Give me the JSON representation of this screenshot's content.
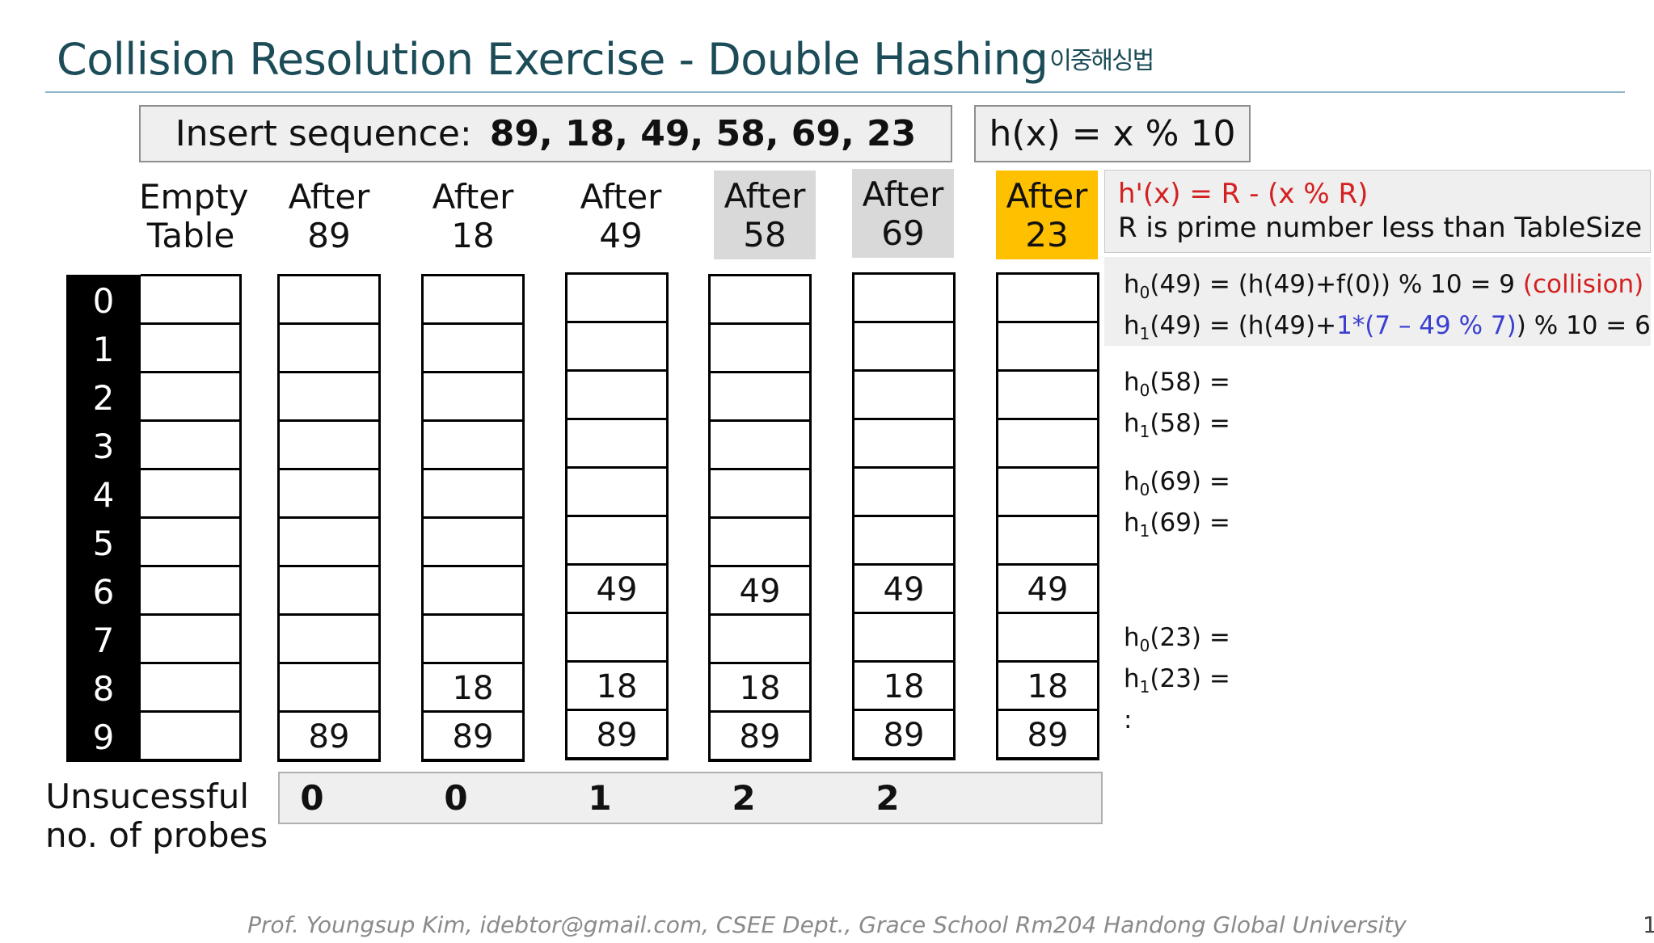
{
  "title": {
    "main": "Collision Resolution Exercise - Double Hashing",
    "korean": "이중해싱법"
  },
  "sequence": {
    "label": "Insert sequence:",
    "values": "89, 18, 49, 58, 69, 23"
  },
  "hash_fn": "h(x) = x % 10",
  "rehash": {
    "formula": "h'(x) = R - (x % R)",
    "note": "R is prime number less than TableSize"
  },
  "columns": [
    {
      "line1": "Empty",
      "line2": "Table",
      "highlight": "none",
      "cells": [
        "",
        "",
        "",
        "",
        "",
        "",
        "",
        "",
        "",
        ""
      ]
    },
    {
      "line1": "After",
      "line2": "89",
      "highlight": "none",
      "cells": [
        "",
        "",
        "",
        "",
        "",
        "",
        "",
        "",
        "",
        "89"
      ]
    },
    {
      "line1": "After",
      "line2": "18",
      "highlight": "none",
      "cells": [
        "",
        "",
        "",
        "",
        "",
        "",
        "",
        "",
        "18",
        "89"
      ]
    },
    {
      "line1": "After",
      "line2": "49",
      "highlight": "none",
      "cells": [
        "",
        "",
        "",
        "",
        "",
        "",
        "49",
        "",
        "18",
        "89"
      ]
    },
    {
      "line1": "After",
      "line2": "58",
      "highlight": "gray",
      "cells": [
        "",
        "",
        "",
        "",
        "",
        "",
        "49",
        "",
        "18",
        "89"
      ]
    },
    {
      "line1": "After",
      "line2": "69",
      "highlight": "gray",
      "cells": [
        "",
        "",
        "",
        "",
        "",
        "",
        "49",
        "",
        "18",
        "89"
      ]
    },
    {
      "line1": "After",
      "line2": "23",
      "highlight": "gold",
      "cells": [
        "",
        "",
        "",
        "",
        "",
        "",
        "49",
        "",
        "18",
        "89"
      ]
    }
  ],
  "indices": [
    "0",
    "1",
    "2",
    "3",
    "4",
    "5",
    "6",
    "7",
    "8",
    "9"
  ],
  "probes": {
    "label_line1": "Unsucessful",
    "label_line2": "no. of probes",
    "values": [
      "0",
      "0",
      "1",
      "2",
      "2"
    ]
  },
  "notes": {
    "h0_49": {
      "a": "h",
      "sub": "0",
      "b": "(49) = (h(49)+f(0)) % 10 = 9 ",
      "c": "(collision)"
    },
    "h1_49": {
      "a": "h",
      "sub": "1",
      "b": "(49) = (h(49)+",
      "c": "1*(7 – 49 % 7)",
      "d": ") % 10 = 6"
    },
    "h0_58": {
      "a": "h",
      "sub": "0",
      "b": "(58) ="
    },
    "h1_58": {
      "a": "h",
      "sub": "1",
      "b": "(58) ="
    },
    "h0_69": {
      "a": "h",
      "sub": "0",
      "b": "(69) ="
    },
    "h1_69": {
      "a": "h",
      "sub": "1",
      "b": "(69) ="
    },
    "h0_23": {
      "a": "h",
      "sub": "0",
      "b": "(23) ="
    },
    "h1_23": {
      "a": "h",
      "sub": "1",
      "b": "(23) ="
    },
    "ellipsis": ":"
  },
  "footer": "Prof. Youngsup Kim, idebtor@gmail.com, CSEE Dept., Grace School Rm204 Handong Global University",
  "page_number": "1"
}
